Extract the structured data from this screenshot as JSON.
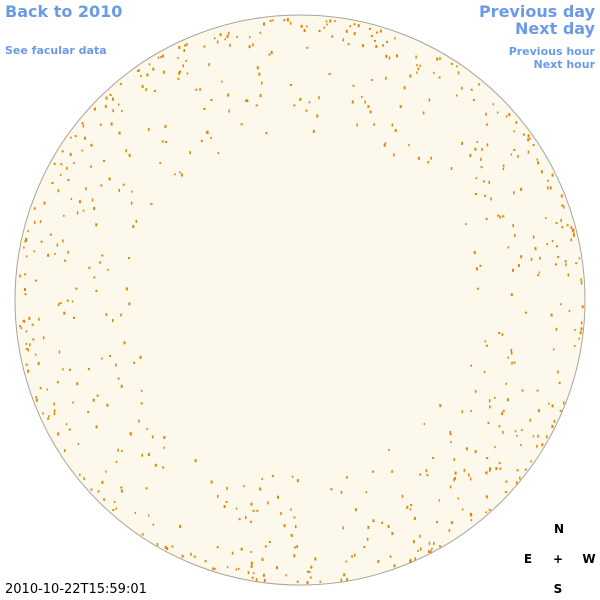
{
  "nav": {
    "back": "Back to 2010",
    "facular": "See facular data",
    "previous_day": "Previous day",
    "next_day": "Next day",
    "previous_hour": "Previous hour",
    "next_hour": "Next hour"
  },
  "timestamp": "2010-10-22T15:59:01",
  "compass": {
    "north": "N",
    "east": "E",
    "center": "+",
    "west": "W",
    "south": "S"
  }
}
